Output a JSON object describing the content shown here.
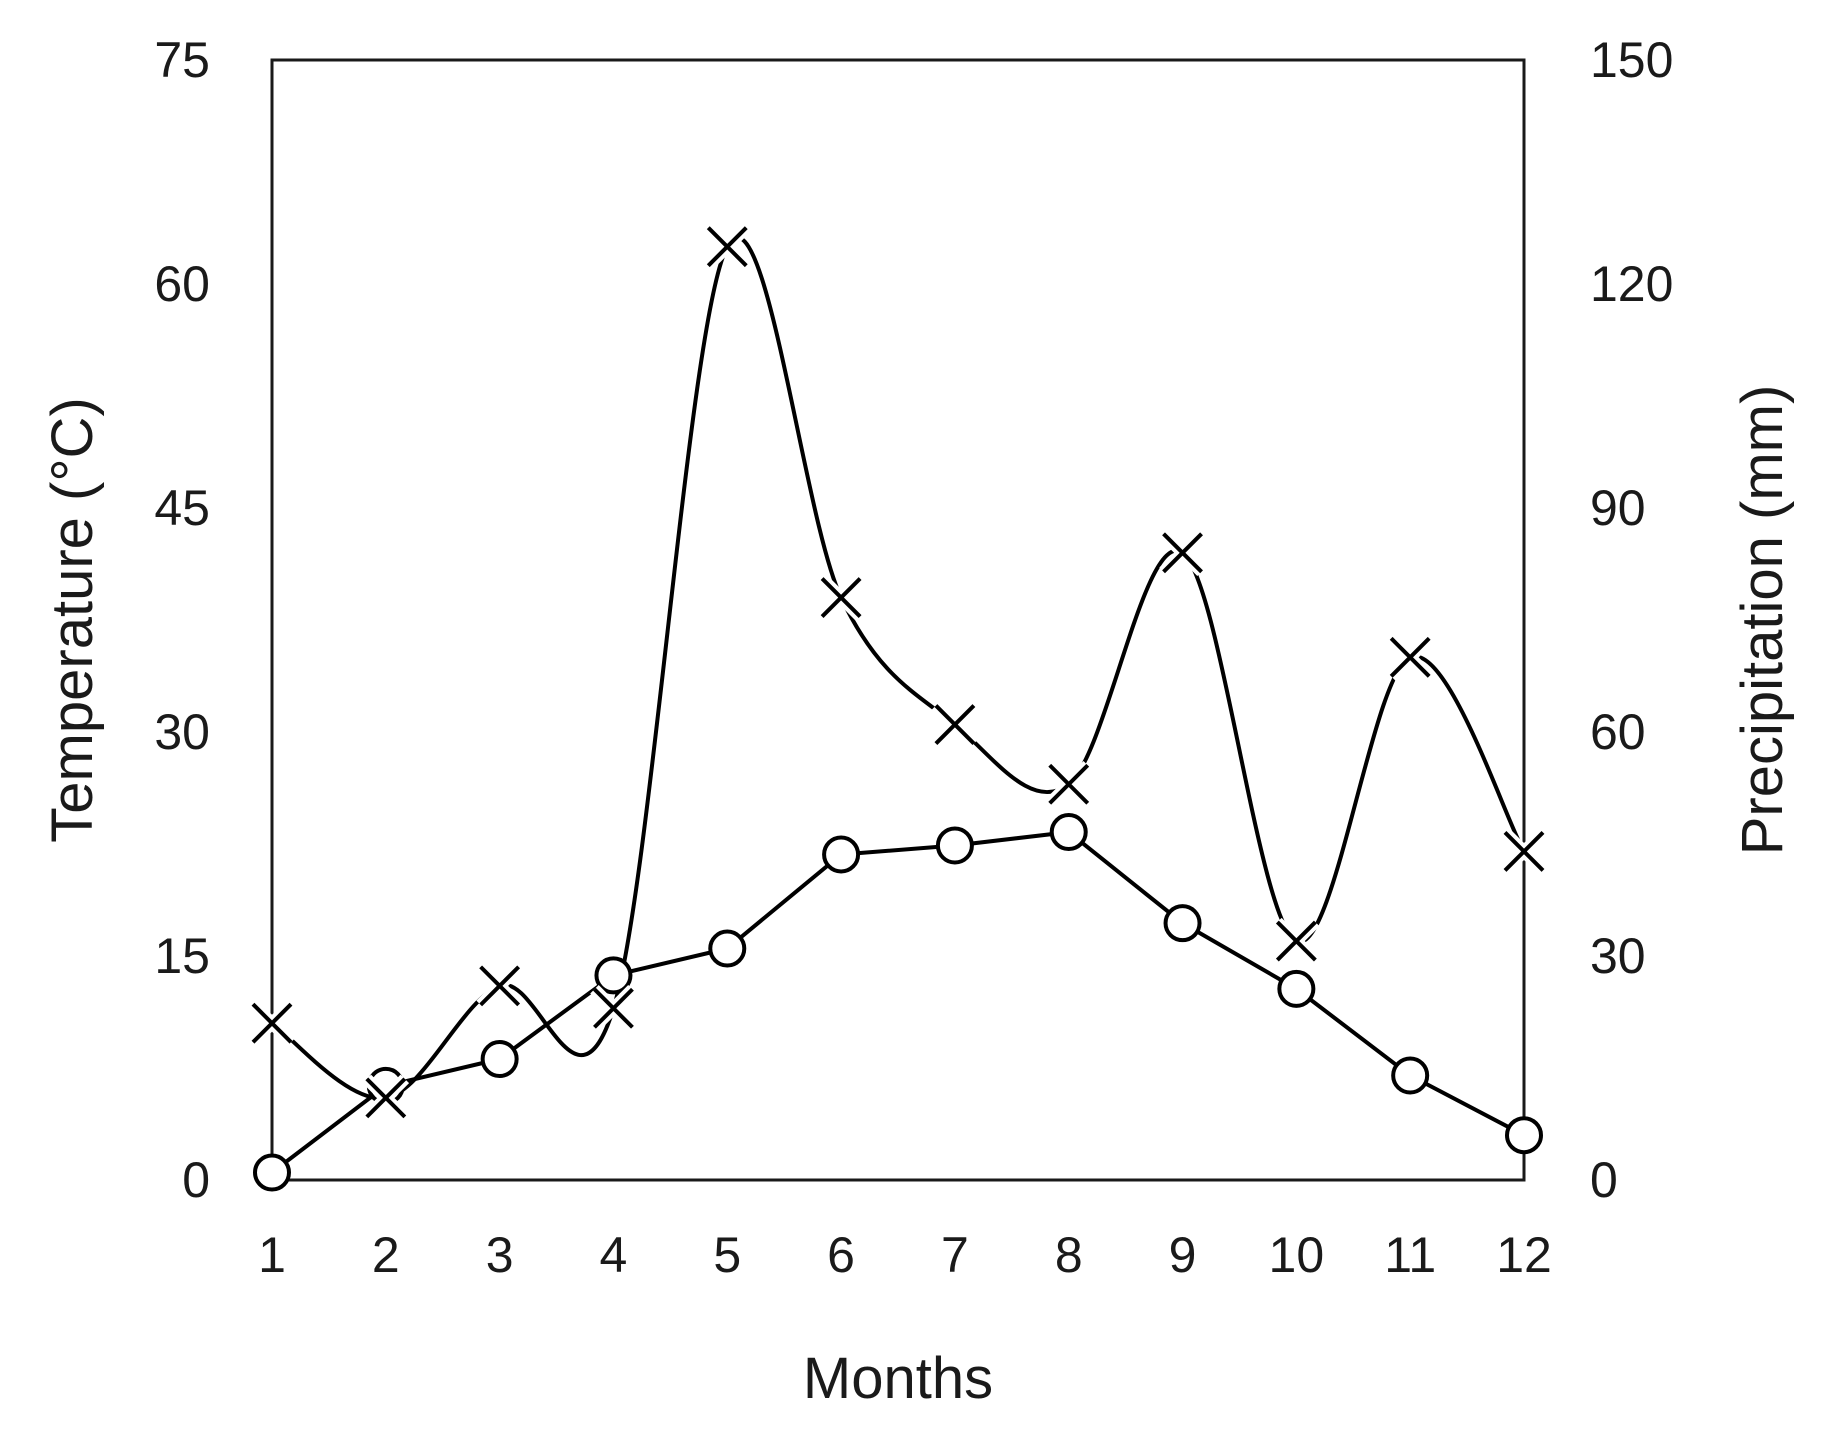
{
  "chart_data": {
    "type": "line",
    "title": "",
    "xlabel": "Months",
    "ylabel_left": "Temperature (°C)",
    "ylabel_right": "Precipitation (mm)",
    "x": [
      1,
      2,
      3,
      4,
      5,
      6,
      7,
      8,
      9,
      10,
      11,
      12
    ],
    "x_ticks": [
      "1",
      "2",
      "3",
      "4",
      "5",
      "6",
      "7",
      "8",
      "9",
      "10",
      "11",
      "12"
    ],
    "ylim_left": [
      0,
      75
    ],
    "ylim_right": [
      0,
      150
    ],
    "yticks_left": [
      "0",
      "15",
      "30",
      "45",
      "60",
      "75"
    ],
    "yticks_right": [
      "0",
      "30",
      "60",
      "90",
      "120",
      "150"
    ],
    "grid": false,
    "legend": "none",
    "series": [
      {
        "axis": "left",
        "marker": "circle",
        "smooth": false,
        "values": [
          0.5,
          6.3,
          8.1,
          13.7,
          15.5,
          21.8,
          22.4,
          23.3,
          17.2,
          12.8,
          7.0,
          3.0
        ]
      },
      {
        "axis": "right",
        "marker": "x",
        "smooth": true,
        "values": [
          21,
          11,
          26,
          23,
          125,
          78,
          61,
          53,
          84,
          32,
          70,
          44
        ]
      }
    ],
    "colors": {
      "line": "#000000",
      "axis": "#1a1a1a",
      "marker_fill": "#ffffff"
    }
  }
}
